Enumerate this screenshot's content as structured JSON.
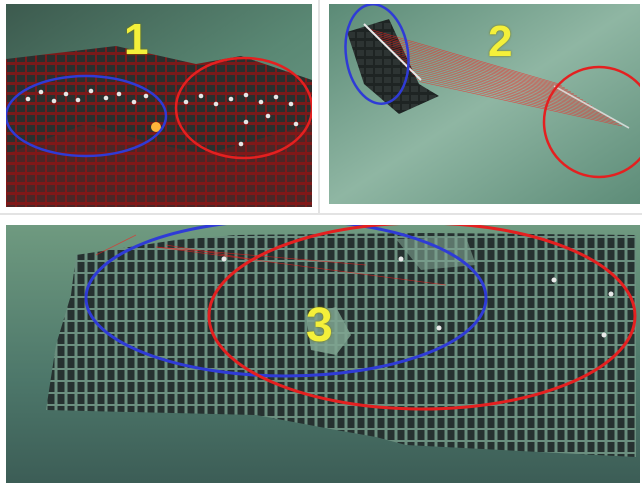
{
  "panels": [
    {
      "label": "1"
    },
    {
      "label": "2"
    },
    {
      "label": "3"
    }
  ],
  "colors": {
    "blue_circle": "#2f3bd6",
    "red_circle": "#e42020",
    "label_yellow": "#f4f03a",
    "cell_dark": "#2a2f2e",
    "laser_red": "#ff1a1a",
    "ground_green": "#4f7e6c"
  }
}
